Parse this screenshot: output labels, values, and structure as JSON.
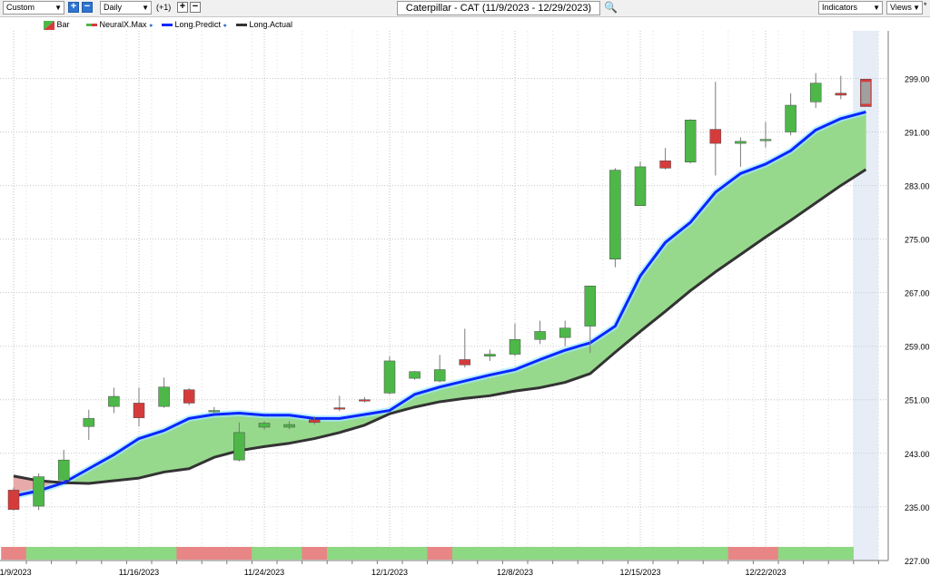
{
  "toolbar": {
    "preset_value": "Custom",
    "period_value": "Daily",
    "offset_label": "(+1)",
    "title": "Caterpillar - CAT (11/9/2023 - 12/29/2023)",
    "indicators_label": "Indicators",
    "views_label": "Views",
    "plus_glyph": "+",
    "minus_glyph": "−",
    "arrow_glyph": "▼",
    "search_glyph": "🔍"
  },
  "legend": [
    {
      "label": "Bar",
      "icon": "bar-icon"
    },
    {
      "label": "NeuralX.Max",
      "icon": "neuralx-icon"
    },
    {
      "label": "Long.Predict",
      "icon": "blue-line-icon"
    },
    {
      "label": "Long.Actual",
      "icon": "black-line-icon"
    }
  ],
  "colors": {
    "up": "#4db848",
    "down": "#d63b3b",
    "predict": "#0b26ff",
    "actual": "#333333",
    "fill": "#97d98c",
    "fill_neg": "#e8a9a9",
    "band_pos": "#8dd882",
    "band_neg": "#e88686",
    "forecast_bg": "#e6edf6"
  },
  "chart_data": {
    "type": "candlestick",
    "title": "Caterpillar - CAT (11/9/2023 - 12/29/2023)",
    "ylim": [
      227,
      303
    ],
    "y_ticks": [
      "299.00",
      "291.00",
      "283.00",
      "275.00",
      "267.00",
      "259.00",
      "251.00",
      "243.00",
      "235.00",
      "227.00"
    ],
    "y_tick_values": [
      299,
      291,
      283,
      275,
      267,
      259,
      251,
      243,
      235,
      227
    ],
    "x_tick_labels": [
      "11/9/2023",
      "11/16/2023",
      "11/24/2023",
      "12/1/2023",
      "12/8/2023",
      "12/15/2023",
      "12/22/2023"
    ],
    "x_tick_index": [
      0,
      5,
      10,
      15,
      20,
      25,
      30
    ],
    "grid": true,
    "legend_position": "top-left",
    "candles": [
      {
        "o": 237.5,
        "h": 237.9,
        "l": 234.4,
        "c": 234.6
      },
      {
        "o": 235.1,
        "h": 240.0,
        "l": 234.5,
        "c": 239.5
      },
      {
        "o": 239.0,
        "h": 243.5,
        "l": 238.8,
        "c": 242.0
      },
      {
        "o": 247.0,
        "h": 249.5,
        "l": 245.0,
        "c": 248.2
      },
      {
        "o": 250.0,
        "h": 252.8,
        "l": 249.0,
        "c": 251.5
      },
      {
        "o": 250.5,
        "h": 252.8,
        "l": 247.0,
        "c": 248.3
      },
      {
        "o": 250.0,
        "h": 254.3,
        "l": 249.8,
        "c": 252.9
      },
      {
        "o": 252.5,
        "h": 252.7,
        "l": 250.2,
        "c": 250.5
      },
      {
        "o": 249.2,
        "h": 249.9,
        "l": 248.9,
        "c": 249.4
      },
      {
        "o": 242.0,
        "h": 247.6,
        "l": 241.8,
        "c": 246.1
      },
      {
        "o": 246.9,
        "h": 247.8,
        "l": 246.5,
        "c": 247.5
      },
      {
        "o": 246.9,
        "h": 247.8,
        "l": 246.6,
        "c": 247.3
      },
      {
        "o": 248.0,
        "h": 248.5,
        "l": 247.3,
        "c": 247.6
      },
      {
        "o": 249.8,
        "h": 251.6,
        "l": 249.3,
        "c": 249.6
      },
      {
        "o": 251.0,
        "h": 251.4,
        "l": 250.6,
        "c": 250.8
      },
      {
        "o": 252.0,
        "h": 257.5,
        "l": 251.8,
        "c": 256.8
      },
      {
        "o": 254.2,
        "h": 255.3,
        "l": 254.0,
        "c": 255.2
      },
      {
        "o": 253.8,
        "h": 257.7,
        "l": 253.6,
        "c": 255.5
      },
      {
        "o": 257.0,
        "h": 261.6,
        "l": 255.8,
        "c": 256.2
      },
      {
        "o": 257.5,
        "h": 258.5,
        "l": 256.8,
        "c": 257.8
      },
      {
        "o": 257.8,
        "h": 262.4,
        "l": 257.5,
        "c": 260.0
      },
      {
        "o": 260.0,
        "h": 262.8,
        "l": 259.3,
        "c": 261.2
      },
      {
        "o": 260.3,
        "h": 262.8,
        "l": 259.0,
        "c": 261.7
      },
      {
        "o": 262.0,
        "h": 268.0,
        "l": 258.0,
        "c": 268.0
      },
      {
        "o": 272.0,
        "h": 285.6,
        "l": 270.8,
        "c": 285.3
      },
      {
        "o": 280.0,
        "h": 286.6,
        "l": 280.0,
        "c": 285.8
      },
      {
        "o": 286.7,
        "h": 288.6,
        "l": 285.4,
        "c": 285.6
      },
      {
        "o": 286.5,
        "h": 292.9,
        "l": 286.3,
        "c": 292.8
      },
      {
        "o": 291.4,
        "h": 298.5,
        "l": 284.5,
        "c": 289.3
      },
      {
        "o": 289.3,
        "h": 290.2,
        "l": 285.8,
        "c": 289.6
      },
      {
        "o": 289.8,
        "h": 292.5,
        "l": 288.7,
        "c": 289.9
      },
      {
        "o": 291.0,
        "h": 296.8,
        "l": 290.5,
        "c": 295.0
      },
      {
        "o": 295.5,
        "h": 299.8,
        "l": 294.6,
        "c": 298.3
      },
      {
        "o": 296.8,
        "h": 299.4,
        "l": 295.9,
        "c": 296.5
      }
    ],
    "forecast_bar": {
      "o": 295.0,
      "h": 298.9,
      "l": 294.8,
      "c": 298.9
    },
    "long_predict": [
      236.6,
      237.4,
      238.6,
      240.7,
      242.8,
      245.2,
      246.4,
      248.2,
      248.8,
      249.0,
      248.7,
      248.7,
      248.2,
      248.2,
      248.8,
      249.4,
      251.8,
      252.9,
      253.8,
      254.7,
      255.5,
      257.0,
      258.4,
      259.5,
      262.0,
      269.5,
      274.5,
      277.5,
      282.0,
      284.8,
      286.2,
      288.2,
      291.3,
      293.0,
      294.0
    ],
    "long_actual": [
      239.6,
      238.9,
      238.6,
      238.5,
      238.9,
      239.3,
      240.2,
      240.7,
      242.4,
      243.4,
      244.0,
      244.5,
      245.2,
      246.1,
      247.2,
      248.9,
      249.9,
      250.7,
      251.2,
      251.6,
      252.3,
      252.8,
      253.6,
      254.9,
      258.1,
      261.2,
      264.2,
      267.3,
      270.1,
      272.7,
      275.3,
      277.8,
      280.4,
      283.0,
      285.4
    ],
    "neuralx_max": [
      -1,
      1,
      1,
      1,
      1,
      1,
      1,
      -1,
      -1,
      -1,
      1,
      1,
      -1,
      1,
      1,
      1,
      1,
      -1,
      1,
      1,
      1,
      1,
      1,
      1,
      1,
      1,
      1,
      1,
      1,
      -1,
      -1,
      1,
      1,
      1
    ]
  }
}
